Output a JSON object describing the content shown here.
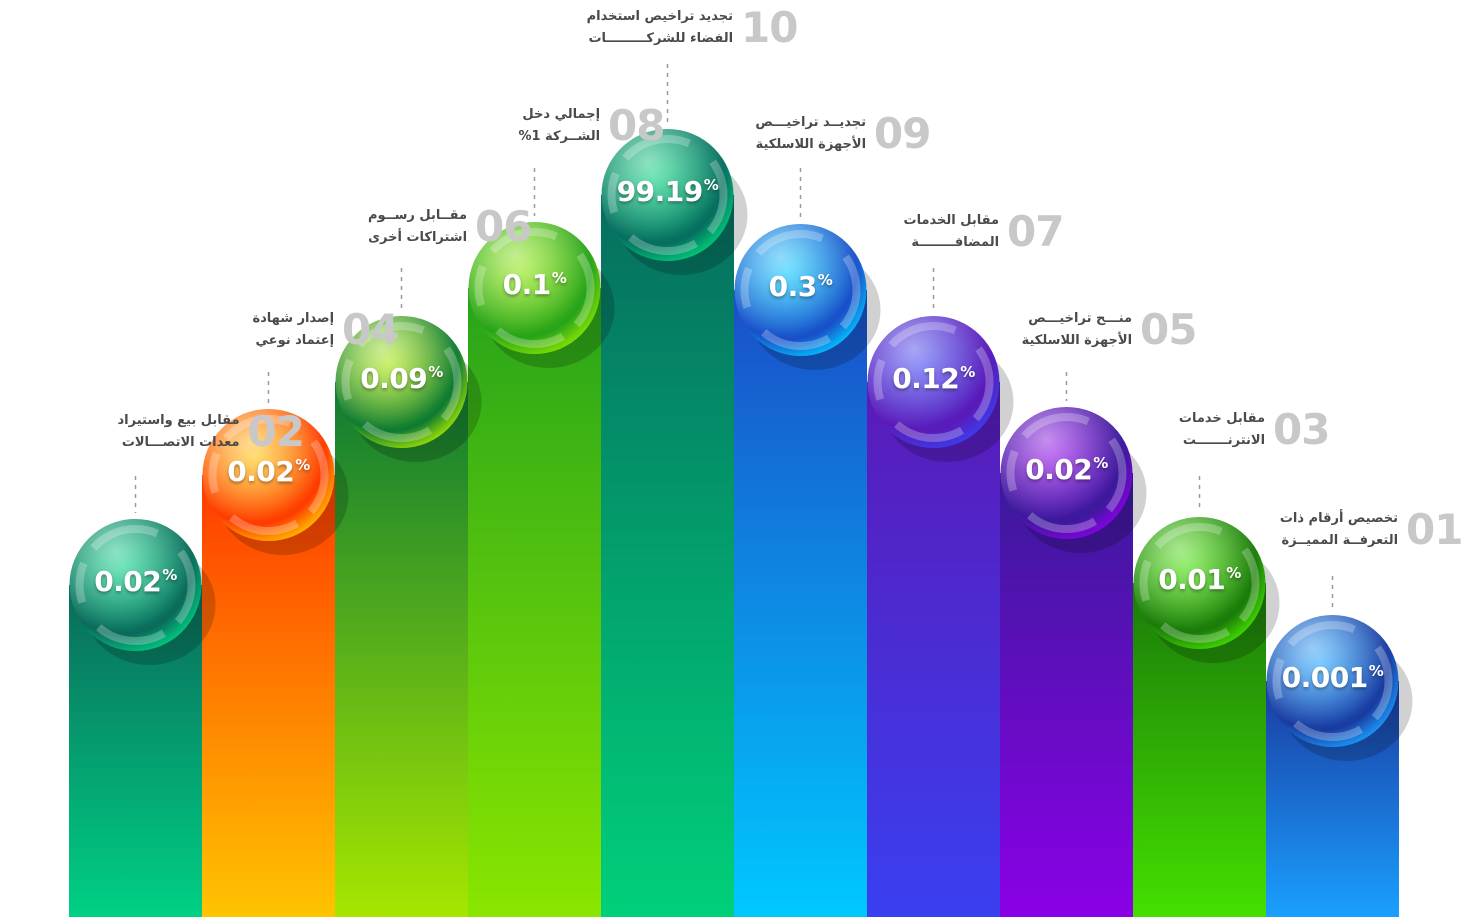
{
  "chart_data": {
    "type": "bar",
    "title": "",
    "xlabel": "",
    "ylabel": "",
    "unit": "%",
    "bars": [
      {
        "rank": "02",
        "label_lines": [
          "مقابل بيع واستيراد",
          "معدات الاتصـــالات"
        ],
        "value": 0.02,
        "value_label": "0.02",
        "colors": [
          "#00d084",
          "#0a6a5a"
        ]
      },
      {
        "rank": "04",
        "label_lines": [
          "إصدار شهادة",
          "إعتماد نوعي"
        ],
        "value": 0.02,
        "value_label": "0.02",
        "colors": [
          "#ffc400",
          "#ff3a00"
        ]
      },
      {
        "rank": "06",
        "label_lines": [
          "مقــابل رســوم",
          "اشتراكات أخرى"
        ],
        "value": 0.09,
        "value_label": "0.09",
        "colors": [
          "#a6e600",
          "#0d7a33"
        ]
      },
      {
        "rank": "08",
        "label_lines": [
          "إجمالي دخل",
          "الشــركة 1%"
        ],
        "value": 0.1,
        "value_label": "0.1",
        "colors": [
          "#8ae600",
          "#26a31a"
        ]
      },
      {
        "rank": "10",
        "label_lines": [
          "تجديد تراخيص استخدام",
          "الفضاء للشركـــــــــات"
        ],
        "value": 99.19,
        "value_label": "99.19",
        "colors": [
          "#00d07a",
          "#066d5f"
        ]
      },
      {
        "rank": "09",
        "label_lines": [
          "تجديــد تراخيـــص",
          "الأجهزة اللاسلكية"
        ],
        "value": 0.3,
        "value_label": "0.3",
        "colors": [
          "#00c8ff",
          "#1a4ec8"
        ]
      },
      {
        "rank": "07",
        "label_lines": [
          "مقابل الخدمات",
          "المضافــــــــة"
        ],
        "value": 0.12,
        "value_label": "0.12",
        "colors": [
          "#3a3ff0",
          "#5a1ab8"
        ]
      },
      {
        "rank": "05",
        "label_lines": [
          "منـــح تراخيـــص",
          "الأجهزة اللاسلكية"
        ],
        "value": 0.02,
        "value_label": "0.02",
        "colors": [
          "#8a00e6",
          "#3a1a9a"
        ]
      },
      {
        "rank": "03",
        "label_lines": [
          "مقابل خدمات",
          "الانترنـــــــت"
        ],
        "value": 0.01,
        "value_label": "0.01",
        "colors": [
          "#44e000",
          "#1a7a0a"
        ]
      },
      {
        "rank": "01",
        "label_lines": [
          "تخصيص أرقام ذات",
          "التعرفــة المميــزة"
        ],
        "value": 0.001,
        "value_label": "0.001",
        "colors": [
          "#1aa0ff",
          "#1a3aa0"
        ]
      }
    ]
  }
}
